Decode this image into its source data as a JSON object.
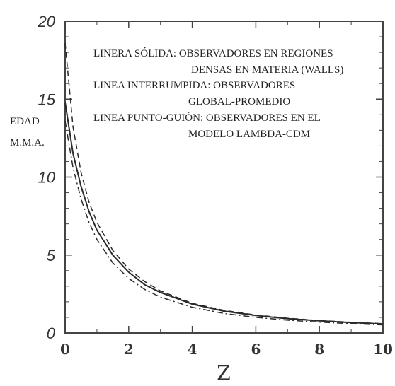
{
  "chart_data": {
    "type": "line",
    "xlabel": "Z",
    "ylabel_lines": [
      "EDAD",
      "M.M.A."
    ],
    "xlim": [
      0,
      10
    ],
    "ylim": [
      0,
      20
    ],
    "xticks": [
      0,
      2,
      4,
      6,
      8,
      10
    ],
    "yticks": [
      0,
      5,
      10,
      15,
      20
    ],
    "grid": false,
    "legend_text": [
      "LINERA SÓLIDA: OBSERVADORES EN REGIONES",
      "DENSAS EN MATERIA (WALLS)",
      "LINEA INTERRUMPIDA: OBSERVADORES",
      "GLOBAL-PROMEDIO",
      "LINEA PUNTO-GUIÓN: OBSERVADORES EN EL",
      "MODELO LAMBDA-CDM"
    ],
    "x": [
      0,
      0.25,
      0.5,
      0.75,
      1,
      1.5,
      2,
      2.5,
      3,
      4,
      5,
      6,
      7,
      8,
      9,
      10
    ],
    "series": [
      {
        "style": "solid",
        "values": [
          14.8,
          11.5,
          9.4,
          7.8,
          6.6,
          5.0,
          3.9,
          3.1,
          2.6,
          1.85,
          1.4,
          1.12,
          0.92,
          0.78,
          0.67,
          0.58
        ]
      },
      {
        "style": "dashed",
        "values": [
          18.6,
          13.2,
          10.3,
          8.4,
          7.1,
          5.3,
          4.1,
          3.3,
          2.7,
          1.9,
          1.45,
          1.15,
          0.95,
          0.8,
          0.69,
          0.6
        ]
      },
      {
        "style": "dash-dot",
        "values": [
          13.6,
          10.6,
          8.6,
          7.1,
          6.0,
          4.5,
          3.5,
          2.8,
          2.3,
          1.65,
          1.25,
          1.0,
          0.82,
          0.7,
          0.6,
          0.52
        ]
      }
    ]
  }
}
